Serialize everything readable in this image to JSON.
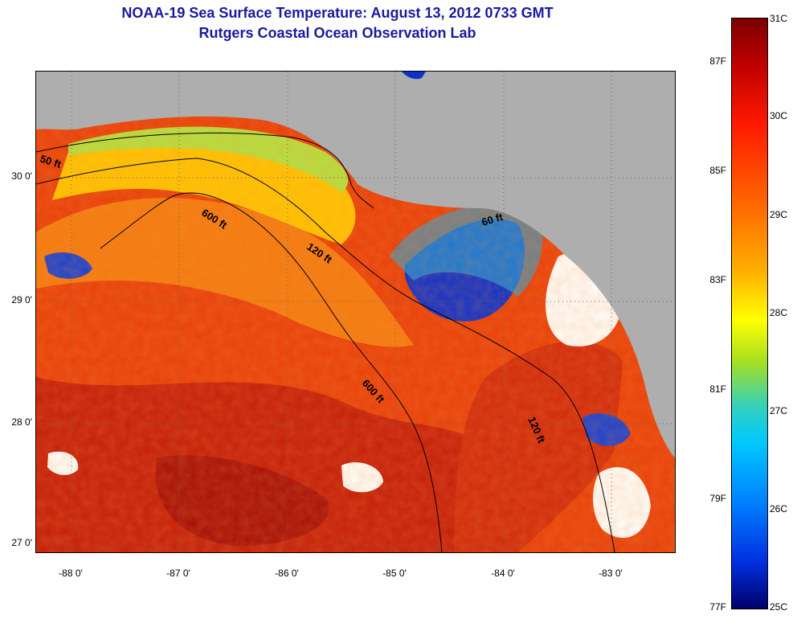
{
  "title": {
    "line1": "NOAA-19 Sea Surface Temperature:  August 13, 2012 0733 GMT",
    "line2": "Rutgers Coastal Ocean Observation Lab"
  },
  "map": {
    "lat_labels": [
      "30 0'",
      "29 0'",
      "28 0'",
      "27 0'"
    ],
    "lon_labels": [
      "-88 0'",
      "-87 0'",
      "-86 0'",
      "-85 0'",
      "-84 0'",
      "-83 0'"
    ],
    "contour_labels": {
      "c50": "50 ft",
      "c600a": "600 ft",
      "c120a": "120 ft",
      "c600b": "600 ft",
      "c120b": "120 ft",
      "c60": "60 ft"
    }
  },
  "colorbar": {
    "fahrenheit": [
      "87F",
      "85F",
      "83F",
      "81F",
      "79F",
      "77F"
    ],
    "celsius": [
      "31C",
      "30C",
      "29C",
      "28C",
      "27C",
      "26C",
      "25C"
    ]
  },
  "colors": {
    "land": "#aeaeae",
    "warm": "#e8400a",
    "hot": "#b81408",
    "shelf": "#ffd000",
    "coastal": "#b4e040",
    "cold": "#1030c8",
    "cloud": "#ffffff",
    "title": "#1a1aa0"
  }
}
